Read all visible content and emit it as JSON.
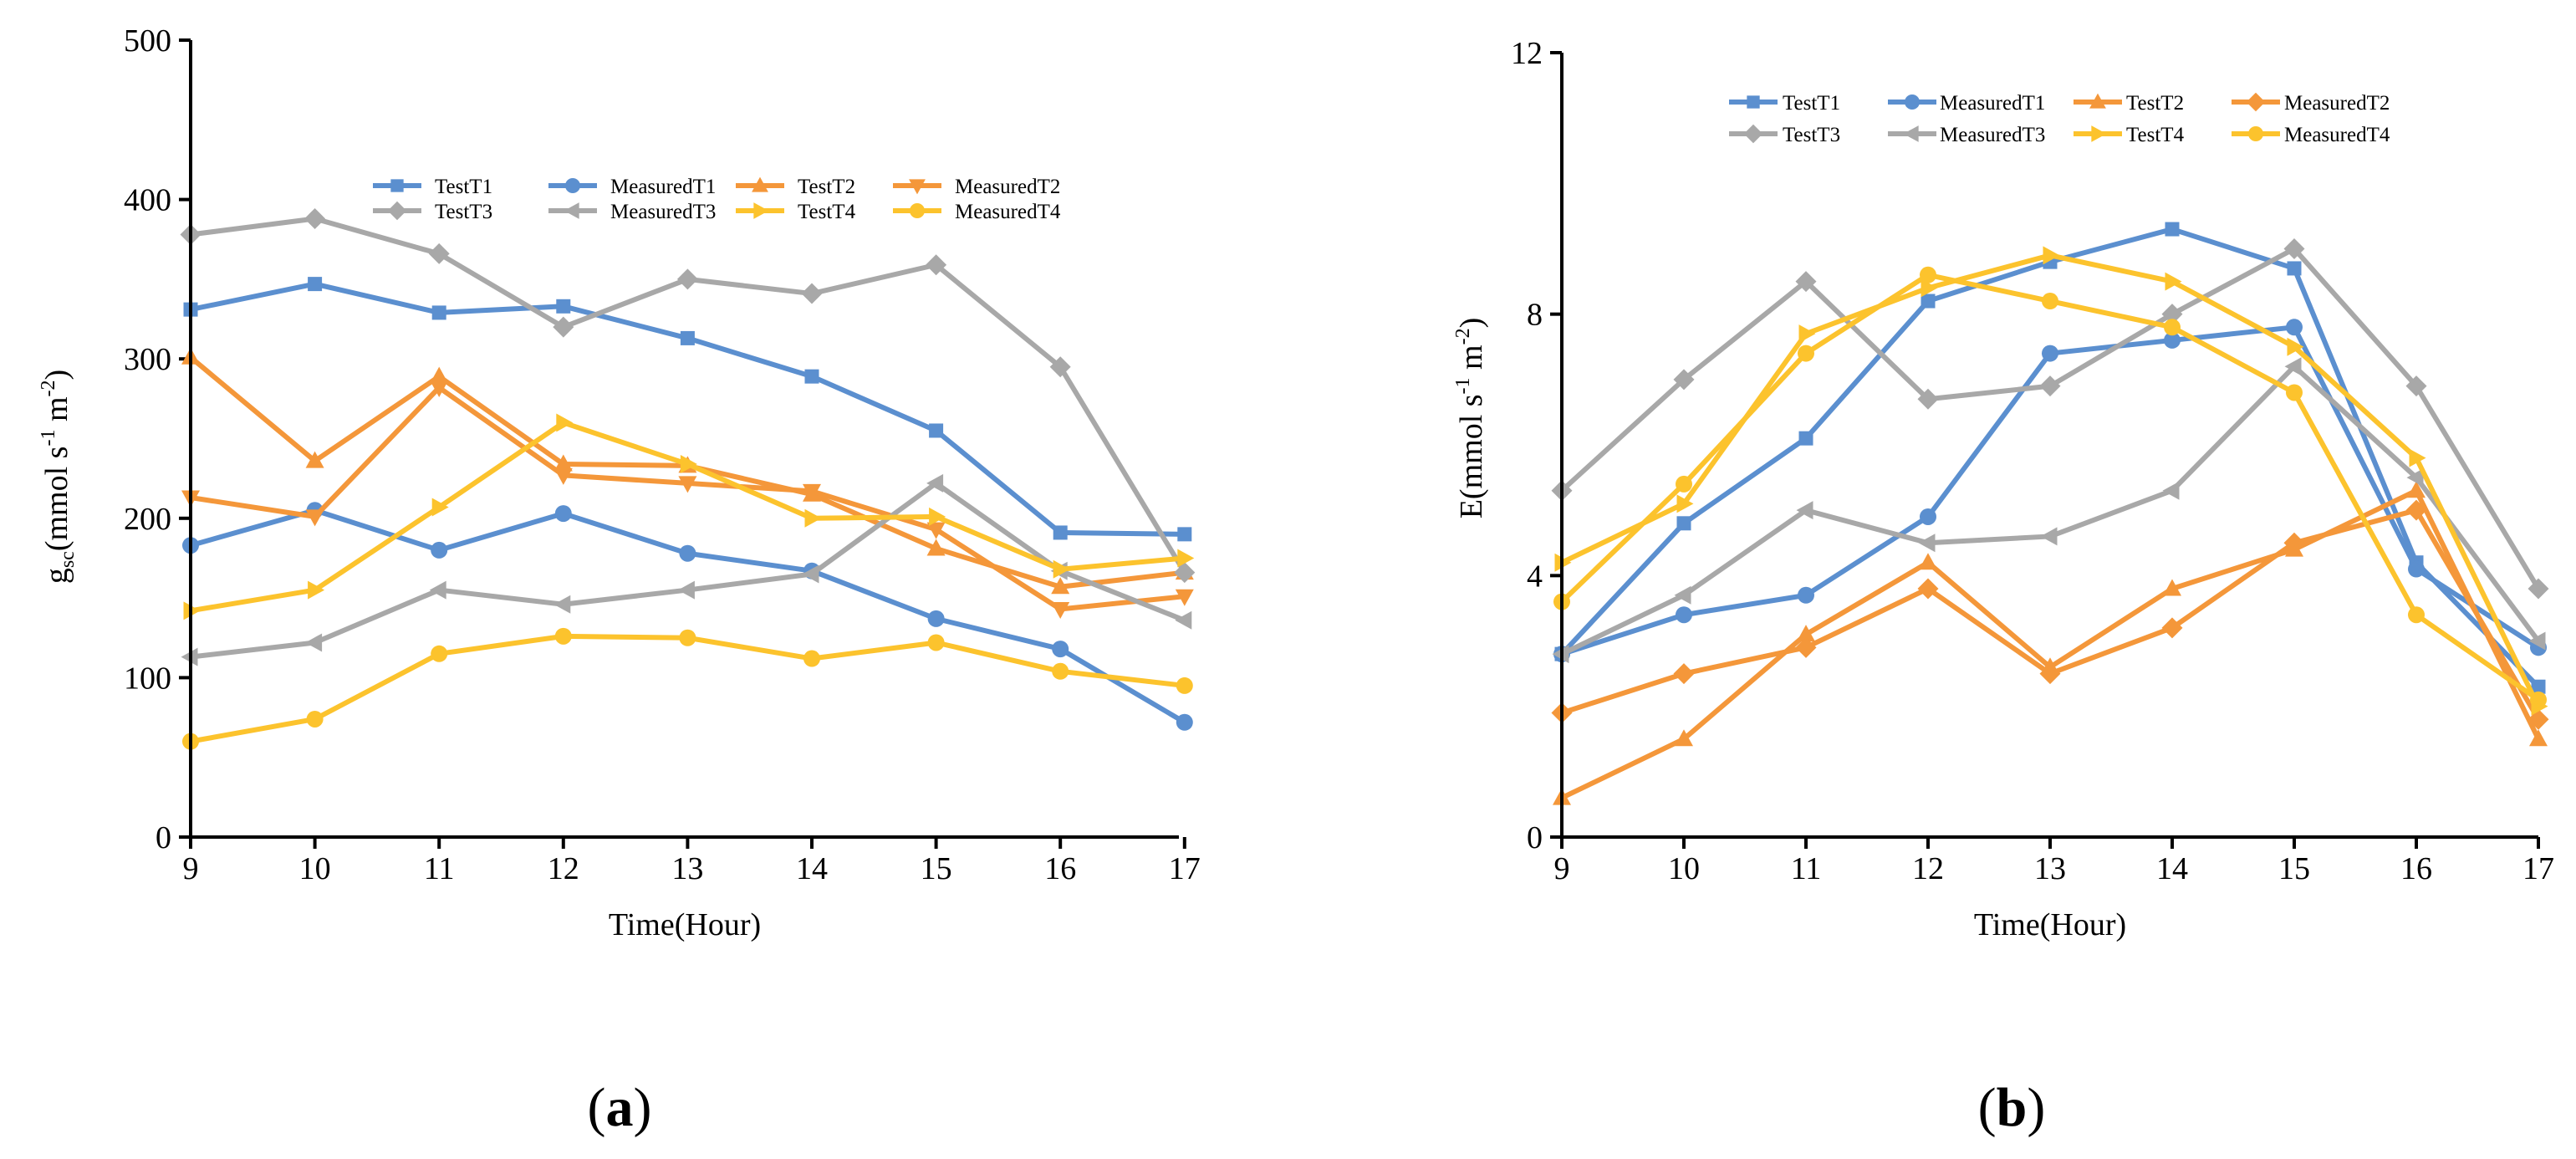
{
  "colors": {
    "T1": "#5b8fcf",
    "T2": "#f4973a",
    "T3": "#a8a8a8",
    "T4": "#fcc32d",
    "axis": "#000000"
  },
  "chart_data": [
    {
      "type": "line",
      "panel": "a",
      "panel_label": "a",
      "xlabel": "Time(Hour)",
      "ylabel_main": "g",
      "ylabel_sub": "sc",
      "ylabel_unit_pre": "(mmol s",
      "ylabel_sup1": "-1",
      "ylabel_unit_mid": " m",
      "ylabel_sup2": "-2",
      "ylabel_unit_post": ")",
      "x": [
        9,
        10,
        11,
        12,
        13,
        14,
        15,
        16,
        17
      ],
      "x_ticks": [
        "9",
        "10",
        "11",
        "12",
        "13",
        "14",
        "15",
        "16",
        "17"
      ],
      "ylim": [
        0,
        500
      ],
      "y_ticks": [
        "0",
        "100",
        "200",
        "300",
        "400",
        "500"
      ],
      "y_tick_values": [
        0,
        100,
        200,
        300,
        400,
        500
      ],
      "series": [
        {
          "name": "TestT1",
          "group": "T1",
          "marker": "square",
          "values": [
            331,
            347,
            329,
            333,
            313,
            289,
            255,
            191,
            190
          ]
        },
        {
          "name": "MeasuredT1",
          "group": "T1",
          "marker": "circle",
          "values": [
            183,
            205,
            180,
            203,
            178,
            167,
            137,
            118,
            72
          ]
        },
        {
          "name": "TestT2",
          "group": "T2",
          "marker": "triangle-up",
          "values": [
            301,
            236,
            289,
            234,
            233,
            215,
            181,
            157,
            166
          ]
        },
        {
          "name": "MeasuredT2",
          "group": "T2",
          "marker": "triangle-down",
          "values": [
            213,
            201,
            282,
            227,
            222,
            217,
            193,
            143,
            151
          ]
        },
        {
          "name": "TestT3",
          "group": "T3",
          "marker": "diamond",
          "values": [
            378,
            388,
            366,
            320,
            350,
            341,
            359,
            295,
            166
          ]
        },
        {
          "name": "MeasuredT3",
          "group": "T3",
          "marker": "triangle-left",
          "values": [
            113,
            122,
            155,
            146,
            155,
            165,
            222,
            167,
            136
          ]
        },
        {
          "name": "TestT4",
          "group": "T4",
          "marker": "triangle-right",
          "values": [
            142,
            155,
            207,
            260,
            234,
            200,
            201,
            168,
            175
          ]
        },
        {
          "name": "MeasuredT4",
          "group": "T4",
          "marker": "circle",
          "values": [
            60,
            74,
            115,
            126,
            125,
            112,
            122,
            104,
            95
          ]
        }
      ]
    },
    {
      "type": "line",
      "panel": "b",
      "panel_label": "b",
      "xlabel": "Time(Hour)",
      "ylabel_main": "E",
      "ylabel_sub": "",
      "ylabel_unit_pre": "(mmol s",
      "ylabel_sup1": "-1",
      "ylabel_unit_mid": " m",
      "ylabel_sup2": "-2",
      "ylabel_unit_post": ")",
      "x": [
        9,
        10,
        11,
        12,
        13,
        14,
        15,
        16,
        17
      ],
      "x_ticks": [
        "9",
        "10",
        "11",
        "12",
        "13",
        "14",
        "15",
        "16",
        "17"
      ],
      "ylim": [
        0,
        12
      ],
      "y_ticks": [
        "0",
        "4",
        "8",
        "12"
      ],
      "y_tick_values": [
        0,
        4,
        8,
        12
      ],
      "series": [
        {
          "name": "TestT1",
          "group": "T1",
          "marker": "square",
          "values": [
            2.8,
            4.8,
            6.1,
            8.2,
            8.8,
            9.3,
            8.7,
            4.2,
            2.3
          ]
        },
        {
          "name": "MeasuredT1",
          "group": "T1",
          "marker": "circle",
          "values": [
            2.8,
            3.4,
            3.7,
            4.9,
            7.4,
            7.6,
            7.8,
            4.1,
            2.9
          ]
        },
        {
          "name": "TestT2",
          "group": "T2",
          "marker": "triangle-up",
          "values": [
            0.6,
            1.5,
            3.1,
            4.2,
            2.6,
            3.8,
            4.4,
            5.3,
            1.5
          ]
        },
        {
          "name": "MeasuredT2",
          "group": "T2",
          "marker": "diamond",
          "values": [
            1.9,
            2.5,
            2.9,
            3.8,
            2.5,
            3.2,
            4.5,
            5.0,
            1.8
          ]
        },
        {
          "name": "TestT3",
          "group": "T3",
          "marker": "diamond",
          "values": [
            5.3,
            7.0,
            8.5,
            6.7,
            6.9,
            8.0,
            9.0,
            6.9,
            3.8
          ]
        },
        {
          "name": "MeasuredT3",
          "group": "T3",
          "marker": "triangle-left",
          "values": [
            2.8,
            3.7,
            5.0,
            4.5,
            4.6,
            5.3,
            7.2,
            5.5,
            3.0
          ]
        },
        {
          "name": "TestT4",
          "group": "T4",
          "marker": "triangle-right",
          "values": [
            4.2,
            5.1,
            7.7,
            8.4,
            8.9,
            8.5,
            7.5,
            5.8,
            2.0
          ]
        },
        {
          "name": "MeasuredT4",
          "group": "T4",
          "marker": "circle",
          "values": [
            3.6,
            5.4,
            7.4,
            8.6,
            8.2,
            7.8,
            6.8,
            3.4,
            2.1
          ]
        }
      ]
    }
  ]
}
